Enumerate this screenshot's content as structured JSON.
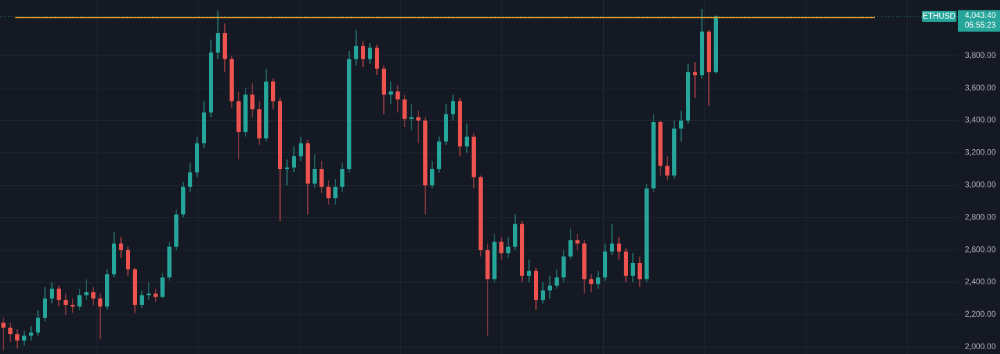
{
  "chart_data": {
    "type": "candlestick",
    "symbol": "ETHUSD",
    "last_price": {
      "value": 4043.4,
      "label": "4,043.40"
    },
    "countdown": "05:55:23",
    "up_color": "#26a69a",
    "down_color": "#ef5350",
    "horizontal_line": {
      "value": 4036,
      "color": "#f0a32b"
    },
    "grid": true,
    "ylim": [
      1957,
      4145
    ],
    "yticks": [
      {
        "value": 2000,
        "label": "2,000.00"
      },
      {
        "value": 2200,
        "label": "2,200.00"
      },
      {
        "value": 2400,
        "label": "2,400.00"
      },
      {
        "value": 2600,
        "label": "2,600.00"
      },
      {
        "value": 2800,
        "label": "2,800.00"
      },
      {
        "value": 3000,
        "label": "3,000.00"
      },
      {
        "value": 3200,
        "label": "3,200.00"
      },
      {
        "value": 3400,
        "label": "3,400.00"
      },
      {
        "value": 3600,
        "label": "3,600.00"
      },
      {
        "value": 3800,
        "label": "3,800.00"
      }
    ],
    "open": [
      2150,
      2120,
      2080,
      2040,
      2070,
      2090,
      2180,
      2300,
      2360,
      2290,
      2260,
      2250,
      2320,
      2340,
      2300,
      2250,
      2450,
      2640,
      2600,
      2480,
      2260,
      2320,
      2330,
      2310,
      2430,
      2620,
      2820,
      2990,
      3080,
      3260,
      3450,
      3820,
      3940,
      3780,
      3520,
      3330,
      3560,
      3470,
      3290,
      3640,
      3520,
      3100,
      3110,
      3180,
      3260,
      3010,
      3100,
      2990,
      2920,
      2990,
      3100,
      3780,
      3860,
      3780,
      3850,
      3720,
      3560,
      3580,
      3530,
      3410,
      3420,
      3400,
      3000,
      3100,
      3270,
      3440,
      3520,
      3240,
      3300,
      3050,
      2600,
      2420,
      2650,
      2580,
      2620,
      2760,
      2440,
      2470,
      2290,
      2350,
      2380,
      2430,
      2560,
      2660,
      2640,
      2420,
      2390,
      2430,
      2590,
      2640,
      2590,
      2440,
      2520,
      2420,
      2980,
      3390,
      3120,
      3060,
      3350,
      3400,
      3700,
      3680,
      3950,
      3700
    ],
    "high": [
      2180,
      2150,
      2110,
      2100,
      2130,
      2230,
      2370,
      2400,
      2380,
      2330,
      2300,
      2360,
      2420,
      2370,
      2330,
      2480,
      2710,
      2680,
      2620,
      2490,
      2350,
      2400,
      2360,
      2460,
      2650,
      2850,
      3020,
      3140,
      3300,
      3520,
      3900,
      4080,
      4000,
      3800,
      3580,
      3600,
      3630,
      3520,
      3720,
      3660,
      3540,
      3160,
      3240,
      3300,
      3280,
      3190,
      3150,
      3030,
      3040,
      3140,
      3830,
      3960,
      3890,
      3880,
      3870,
      3740,
      3640,
      3620,
      3560,
      3500,
      3460,
      3420,
      3150,
      3300,
      3500,
      3560,
      3540,
      3380,
      3320,
      3060,
      2640,
      2700,
      2680,
      2680,
      2820,
      2780,
      2540,
      2490,
      2400,
      2440,
      2480,
      2600,
      2730,
      2700,
      2660,
      2450,
      2470,
      2640,
      2760,
      2680,
      2610,
      2580,
      2560,
      3010,
      3440,
      3400,
      3180,
      3400,
      3460,
      3750,
      3760,
      4090,
      3960,
      4050
    ],
    "low": [
      1980,
      2030,
      1990,
      2010,
      2040,
      2070,
      2160,
      2270,
      2250,
      2200,
      2210,
      2230,
      2290,
      2260,
      2050,
      2230,
      2430,
      2550,
      2440,
      2210,
      2240,
      2290,
      2280,
      2300,
      2410,
      2600,
      2800,
      2960,
      3050,
      3230,
      3420,
      3780,
      3700,
      3480,
      3160,
      3300,
      3420,
      3250,
      3270,
      3470,
      2780,
      3000,
      3080,
      3150,
      2820,
      2980,
      2950,
      2880,
      2880,
      2960,
      3080,
      3740,
      3730,
      3750,
      3680,
      3440,
      3500,
      3450,
      3360,
      3340,
      3260,
      2820,
      2980,
      3080,
      3250,
      3400,
      3180,
      3200,
      2980,
      2560,
      2070,
      2400,
      2540,
      2550,
      2600,
      2400,
      2400,
      2230,
      2270,
      2300,
      2360,
      2400,
      2540,
      2600,
      2330,
      2340,
      2360,
      2410,
      2570,
      2540,
      2400,
      2400,
      2370,
      2400,
      2960,
      3060,
      3030,
      3040,
      3270,
      3380,
      3540,
      3660,
      3490,
      3690
    ],
    "close": [
      2120,
      2080,
      2040,
      2070,
      2090,
      2180,
      2300,
      2360,
      2290,
      2260,
      2250,
      2320,
      2340,
      2300,
      2250,
      2450,
      2640,
      2600,
      2480,
      2260,
      2320,
      2330,
      2310,
      2430,
      2620,
      2820,
      2990,
      3080,
      3260,
      3450,
      3820,
      3940,
      3780,
      3520,
      3330,
      3560,
      3470,
      3290,
      3640,
      3520,
      3100,
      3110,
      3180,
      3260,
      3010,
      3100,
      2990,
      2920,
      2990,
      3100,
      3780,
      3860,
      3780,
      3850,
      3720,
      3560,
      3580,
      3530,
      3410,
      3420,
      3400,
      3000,
      3100,
      3270,
      3440,
      3520,
      3240,
      3300,
      3050,
      2600,
      2420,
      2650,
      2580,
      2620,
      2760,
      2440,
      2470,
      2290,
      2350,
      2380,
      2430,
      2560,
      2660,
      2640,
      2420,
      2390,
      2430,
      2590,
      2640,
      2590,
      2440,
      2520,
      2420,
      2980,
      3390,
      3120,
      3060,
      3350,
      3400,
      3700,
      3680,
      3950,
      3700,
      4043.4
    ]
  }
}
